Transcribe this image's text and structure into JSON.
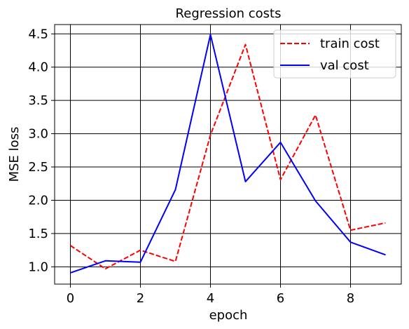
{
  "chart_data": {
    "type": "line",
    "title": "Regression costs",
    "xlabel": "epoch",
    "ylabel": "MSE loss",
    "xlim": [
      -0.45,
      9.45
    ],
    "ylim": [
      0.74,
      4.64
    ],
    "x_ticks": [
      0,
      2,
      4,
      6,
      8
    ],
    "y_ticks": [
      1.0,
      1.5,
      2.0,
      2.5,
      3.0,
      3.5,
      4.0,
      4.5
    ],
    "grid": true,
    "legend_position": "top-right",
    "x": [
      0,
      1,
      2,
      3,
      4,
      5,
      6,
      7,
      8,
      9
    ],
    "series": [
      {
        "name": "train cost",
        "color": "#ff0000",
        "style": "dashed",
        "values": [
          1.32,
          0.97,
          1.25,
          1.08,
          2.98,
          4.34,
          2.31,
          3.28,
          1.55,
          1.66
        ]
      },
      {
        "name": "val cost",
        "color": "#0000ff",
        "style": "solid",
        "values": [
          0.91,
          1.09,
          1.07,
          2.16,
          4.49,
          2.28,
          2.87,
          1.99,
          1.37,
          1.18
        ]
      }
    ]
  }
}
